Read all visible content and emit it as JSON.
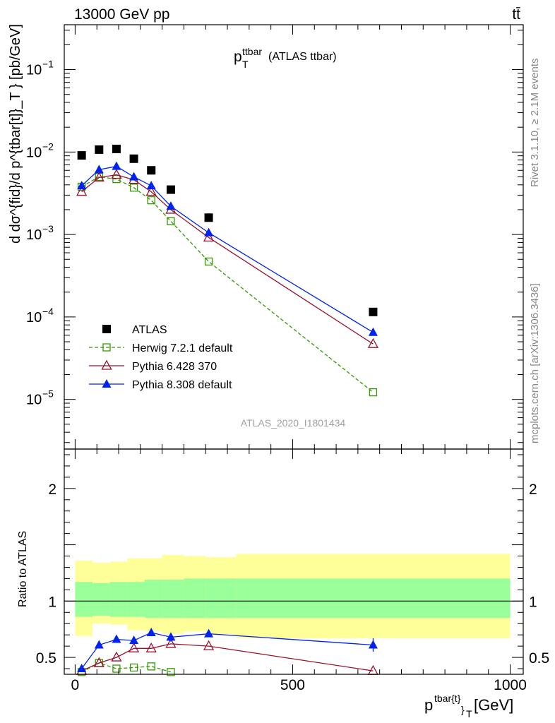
{
  "header": {
    "energy_label": "13000 GeV pp",
    "process_label": "tt̄"
  },
  "side_labels": {
    "rivet": "Rivet 3.1.10, ≥ 2.1M events",
    "mcplots": "mcplots.cern.ch [arXiv:1306.3436]"
  },
  "chart_data": [
    {
      "type": "scatter",
      "panel": "main",
      "title_main": "p",
      "title_sup": "ttbar",
      "title_sub": "T",
      "title_rest": " (ATLAS ttbar)",
      "watermark": "ATLAS_2020_I1801434",
      "ylabel": "d dσ^{fid}/d p^{tbar[t]}_T } [pb/GeV]",
      "yscale": "log",
      "ylim": [
        2.5e-06,
        0.35
      ],
      "xlim": [
        -25,
        1030
      ],
      "ytick_labels": [
        {
          "base": "10",
          "exp": "−1",
          "value": 0.1
        },
        {
          "base": "10",
          "exp": "−2",
          "value": 0.01
        },
        {
          "base": "10",
          "exp": "−3",
          "value": 0.001
        },
        {
          "base": "10",
          "exp": "−4",
          "value": 0.0001
        },
        {
          "base": "10",
          "exp": "−5",
          "value": 1e-05
        }
      ],
      "series": [
        {
          "name": "ATLAS",
          "color": "#000000",
          "marker": "square-filled",
          "line": "none",
          "x": [
            15,
            55,
            95,
            135,
            175,
            220,
            307,
            685
          ],
          "y": [
            0.0091,
            0.0107,
            0.0109,
            0.0083,
            0.006,
            0.0035,
            0.0016,
            0.000115
          ]
        },
        {
          "name": "Herwig 7.2.1 default",
          "color": "#339900",
          "marker": "square-open",
          "line": "dashed",
          "x": [
            15,
            55,
            95,
            135,
            175,
            220,
            307,
            685
          ],
          "y": [
            0.0038,
            0.005,
            0.0047,
            0.0037,
            0.0026,
            0.00145,
            0.00047,
            1.22e-05
          ]
        },
        {
          "name": "Pythia 6.428 370",
          "color": "#99112b",
          "marker": "triangle-open",
          "line": "solid",
          "x": [
            15,
            55,
            95,
            135,
            175,
            220,
            307,
            685
          ],
          "y": [
            0.0033,
            0.0049,
            0.0053,
            0.0046,
            0.0033,
            0.002,
            0.00092,
            4.7e-05
          ]
        },
        {
          "name": "Pythia 8.308 default",
          "color": "#0022ee",
          "marker": "triangle-filled",
          "line": "solid",
          "x": [
            15,
            55,
            95,
            135,
            175,
            220,
            307,
            685
          ],
          "y": [
            0.0039,
            0.0061,
            0.0067,
            0.005,
            0.0039,
            0.0022,
            0.00105,
            6.5e-05
          ]
        }
      ]
    },
    {
      "type": "scatter",
      "panel": "ratio",
      "ylabel": "Ratio to ATLAS",
      "xlabel_main": "p",
      "xlabel_sup": "tbar{t}",
      "xlabel_sub": "}",
      "xlabel_sub2": "T",
      "xlabel_unit": " [GeV]",
      "ylim": [
        0.35,
        2.35
      ],
      "xlim": [
        -25,
        1030
      ],
      "ytick_labels": [
        "0.5",
        "1",
        "2"
      ],
      "ytick_values": [
        0.5,
        1,
        2
      ],
      "xtick_labels": [
        "0",
        "500",
        "1000"
      ],
      "xtick_values": [
        0,
        500,
        1000
      ],
      "reference_line": 1,
      "uncertainty_bins": {
        "edges": [
          0,
          40,
          80,
          120,
          160,
          200,
          250,
          300,
          370,
          1000
        ],
        "stat_lo": [
          0.86,
          0.87,
          0.86,
          0.86,
          0.85,
          0.85,
          0.85,
          0.85,
          0.85
        ],
        "stat_hi": [
          1.17,
          1.16,
          1.17,
          1.17,
          1.19,
          1.19,
          1.2,
          1.2,
          1.2
        ],
        "total_lo": [
          0.69,
          0.8,
          0.79,
          0.74,
          0.73,
          0.71,
          0.73,
          0.7,
          0.67
        ],
        "total_hi": [
          1.36,
          1.34,
          1.35,
          1.38,
          1.38,
          1.41,
          1.4,
          1.39,
          1.42
        ],
        "stat_color": "#99ff99",
        "total_color": "#ffff99"
      },
      "series": [
        {
          "name": "Herwig 7.2.1 default",
          "color": "#339900",
          "marker": "square-open",
          "line": "dashed",
          "x": [
            15,
            55,
            95,
            135,
            175,
            220
          ],
          "y": [
            0.37,
            0.45,
            0.4,
            0.41,
            0.42,
            0.37
          ]
        },
        {
          "name": "Pythia 6.428 370",
          "color": "#99112b",
          "marker": "triangle-open",
          "line": "solid",
          "x": [
            15,
            55,
            95,
            135,
            175,
            220,
            307,
            685
          ],
          "y": [
            0.38,
            0.45,
            0.5,
            0.58,
            0.58,
            0.62,
            0.6,
            0.38
          ]
        },
        {
          "name": "Pythia 8.308 default",
          "color": "#0022ee",
          "marker": "triangle-filled",
          "line": "solid",
          "x": [
            15,
            55,
            95,
            135,
            175,
            220,
            307,
            685
          ],
          "y": [
            0.4,
            0.61,
            0.66,
            0.65,
            0.72,
            0.68,
            0.71,
            0.61
          ],
          "err": [
            0.03,
            0.02,
            0.02,
            0.03,
            0.03,
            0.04,
            0.03,
            0.06
          ]
        }
      ]
    }
  ]
}
